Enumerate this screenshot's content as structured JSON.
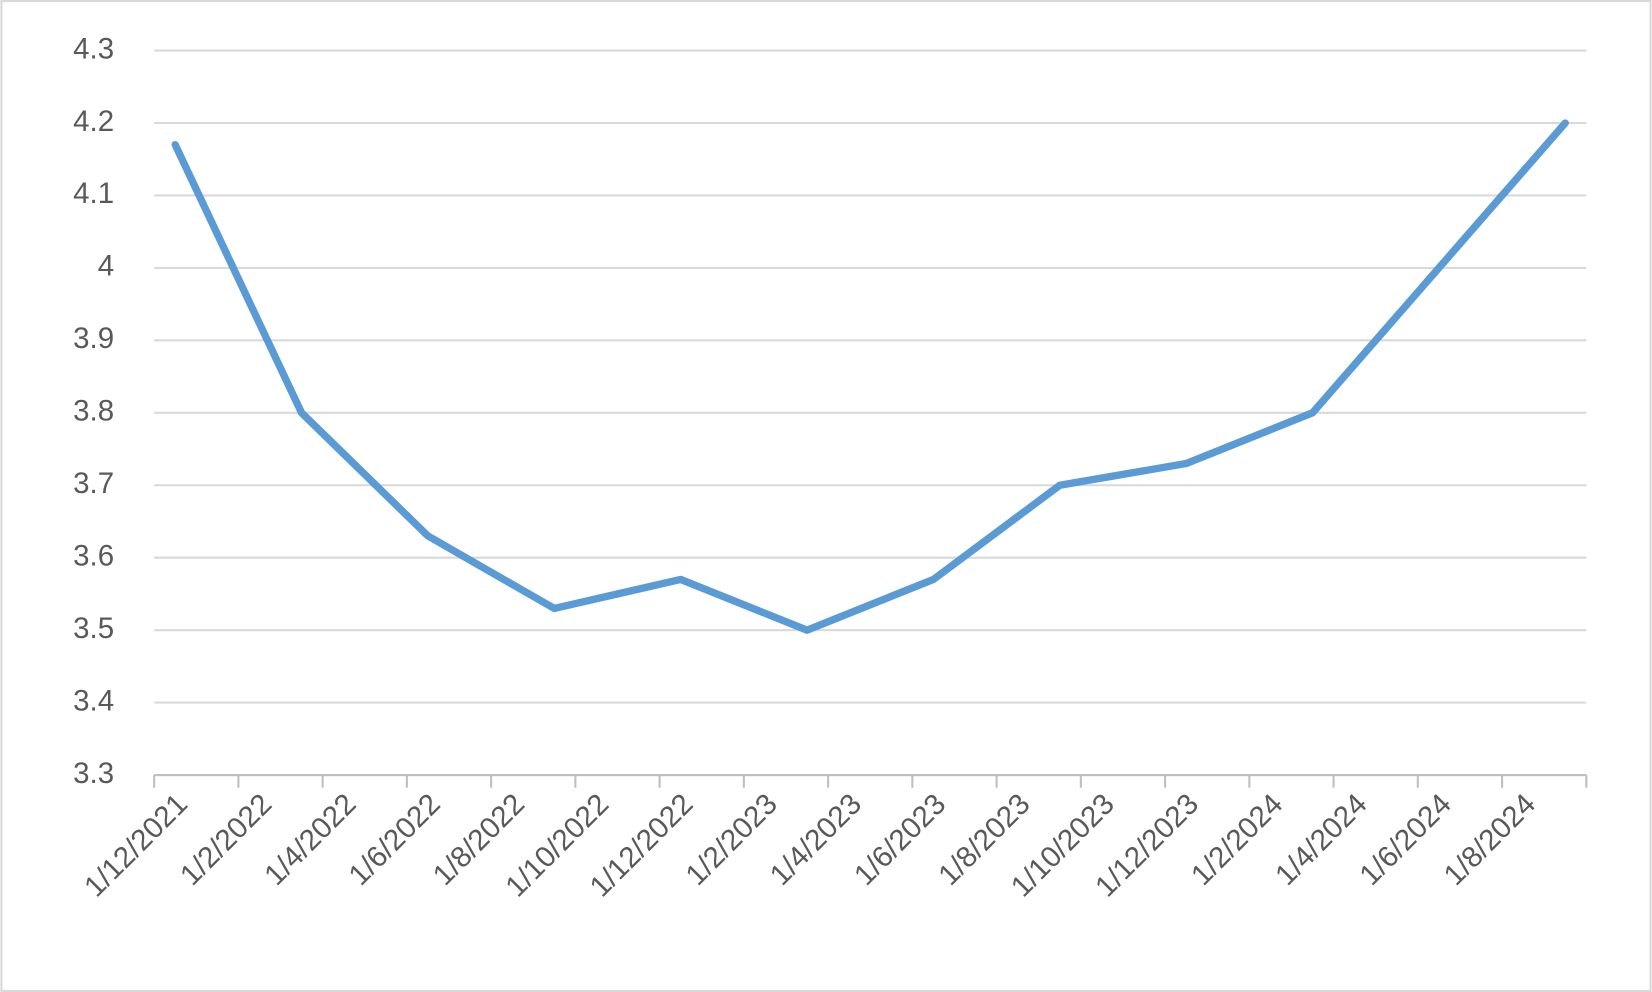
{
  "chart_data": {
    "type": "line",
    "x": [
      "2021-12",
      "2022-03",
      "2022-06",
      "2022-09",
      "2022-12",
      "2023-03",
      "2023-06",
      "2023-09",
      "2023-12",
      "2024-03",
      "2024-09"
    ],
    "series": [
      {
        "color": "#5b9bd5",
        "values": [
          4.17,
          3.8,
          3.63,
          3.53,
          3.57,
          3.5,
          3.57,
          3.7,
          3.73,
          3.8,
          4.2
        ]
      }
    ],
    "xlim": [
      "2021-12",
      "2024-09"
    ],
    "xticks": [
      {
        "value": "2021-12",
        "label": "1/12/2021"
      },
      {
        "value": "2022-02",
        "label": "1/2/2022"
      },
      {
        "value": "2022-04",
        "label": "1/4/2022"
      },
      {
        "value": "2022-06",
        "label": "1/6/2022"
      },
      {
        "value": "2022-08",
        "label": "1/8/2022"
      },
      {
        "value": "2022-10",
        "label": "1/10/2022"
      },
      {
        "value": "2022-12",
        "label": "1/12/2022"
      },
      {
        "value": "2023-02",
        "label": "1/2/2023"
      },
      {
        "value": "2023-04",
        "label": "1/4/2023"
      },
      {
        "value": "2023-06",
        "label": "1/6/2023"
      },
      {
        "value": "2023-08",
        "label": "1/8/2023"
      },
      {
        "value": "2023-10",
        "label": "1/10/2023"
      },
      {
        "value": "2023-12",
        "label": "1/12/2023"
      },
      {
        "value": "2024-02",
        "label": "1/2/2024"
      },
      {
        "value": "2024-04",
        "label": "1/4/2024"
      },
      {
        "value": "2024-06",
        "label": "1/6/2024"
      },
      {
        "value": "2024-08",
        "label": "1/8/2024"
      }
    ],
    "ylim": [
      3.3,
      4.3
    ],
    "yticks": [
      3.3,
      3.4,
      3.5,
      3.6,
      3.7,
      3.8,
      3.9,
      4,
      4.1,
      4.2,
      4.3
    ],
    "grid": true
  }
}
